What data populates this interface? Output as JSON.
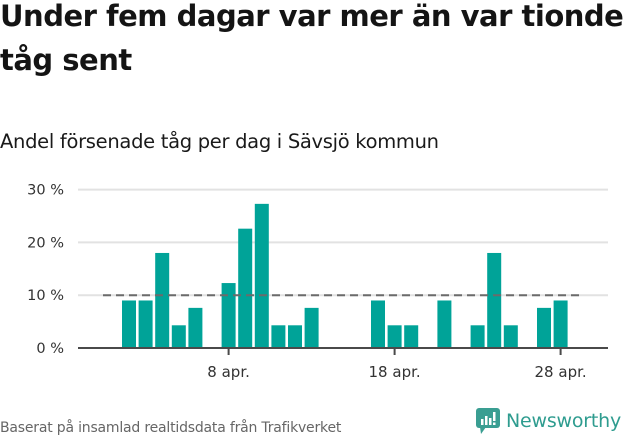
{
  "header": {
    "title": "Under fem dagar var mer än var tionde tåg sent",
    "subtitle": "Andel försenade tåg per dag i Sävsjö kommun"
  },
  "footer": {
    "source": "Baserat på insamlad realtidsdata från Trafikverket",
    "brand": "Newsworthy",
    "brand_icon": "bar-chart-speech-bubble-icon",
    "brand_color": "#2e9c8f"
  },
  "chart_data": {
    "type": "bar",
    "title": "Under fem dagar var mer än var tionde tåg sent",
    "subtitle": "Andel försenade tåg per dag i Sävsjö kommun",
    "xlabel": "",
    "ylabel": "",
    "ylim": [
      0,
      30
    ],
    "yticks": [
      "0 %",
      "10 %",
      "20 %",
      "30 %"
    ],
    "xticks": [
      "8 apr.",
      "18 apr.",
      "28 apr."
    ],
    "grid": true,
    "bar_color": "#00a398",
    "reference_line": {
      "value": 10,
      "style": "dashed",
      "color": "#6b6b6b"
    },
    "categories": [
      "2 apr.",
      "3 apr.",
      "4 apr.",
      "5 apr.",
      "6 apr.",
      "7 apr.",
      "8 apr.",
      "9 apr.",
      "10 apr.",
      "11 apr.",
      "12 apr.",
      "13 apr.",
      "14 apr.",
      "15 apr.",
      "16 apr.",
      "17 apr.",
      "18 apr.",
      "19 apr.",
      "20 apr.",
      "21 apr.",
      "22 apr.",
      "23 apr.",
      "24 apr.",
      "25 apr.",
      "26 apr.",
      "27 apr.",
      "28 apr."
    ],
    "values": [
      9.0,
      9.0,
      18.0,
      4.3,
      7.6,
      0,
      12.3,
      22.6,
      27.3,
      4.3,
      4.3,
      7.6,
      0,
      0,
      0,
      9.0,
      4.3,
      4.3,
      0,
      9.0,
      0,
      4.3,
      18.0,
      4.3,
      0,
      7.6,
      9.0
    ]
  }
}
